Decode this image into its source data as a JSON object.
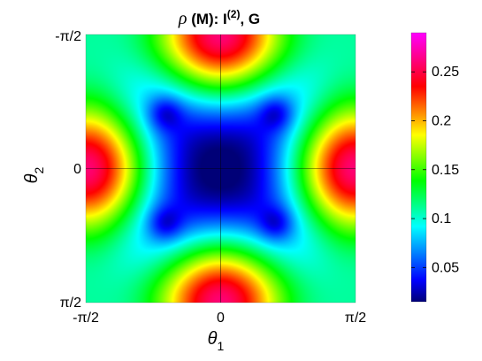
{
  "chart_data": {
    "type": "heatmap",
    "title": {
      "symbol": "ρ",
      "rest": " (M):  I",
      "superscript": "(2)",
      "tail": ", G"
    },
    "xlabel": {
      "main": "θ",
      "sub": "1"
    },
    "ylabel": {
      "main": "θ",
      "sub": "2"
    },
    "xlim": [
      -1.5708,
      1.5708
    ],
    "ylim": [
      -1.5708,
      1.5708
    ],
    "y_direction": "reversed (-π/2 at top, π/2 at bottom)",
    "x_ticks": [
      "-π/2",
      "0",
      "π/2"
    ],
    "y_ticks": [
      "-π/2",
      "0",
      "π/2"
    ],
    "crosshair_lines_at_zero": true,
    "colormap": "hsv (blue → cyan → green → yellow → red → magenta)",
    "colorbar": {
      "range": [
        0.015,
        0.29
      ],
      "tick_values": [
        0.05,
        0.1,
        0.15,
        0.2,
        0.25
      ],
      "tick_labels": [
        "0.05",
        "0.1",
        "0.15",
        "0.2",
        "0.25"
      ]
    },
    "field_samples": {
      "description": "approximate values read from colors",
      "center_0_0": 0.065,
      "minima_at_±0.65_±0.65": 0.02,
      "edge_midpoints": 0.285,
      "corners": 0.09
    }
  }
}
